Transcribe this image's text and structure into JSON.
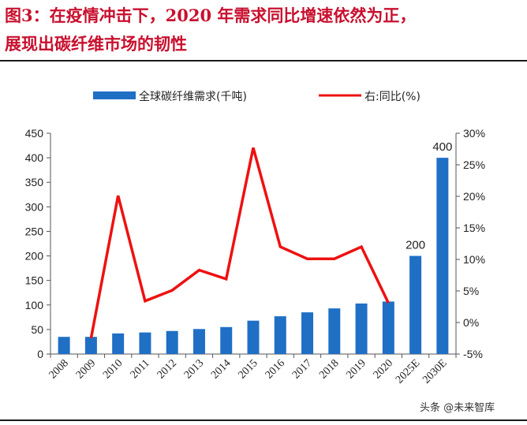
{
  "title": {
    "line1": "图3：在疫情冲击下，2020 年需求同比增速依然为正，",
    "line2": "展现出碳纤维市场的韧性"
  },
  "watermark": "头条 @未来智库",
  "colors": {
    "bar": "#1f6fc5",
    "line": "#ee1111",
    "title": "#c8102e"
  },
  "chart_data": {
    "type": "bar+line",
    "categories": [
      "2008",
      "2009",
      "2010",
      "2011",
      "2012",
      "2013",
      "2014",
      "2015",
      "2016",
      "2017",
      "2018",
      "2019",
      "2020",
      "2025E",
      "2030E"
    ],
    "series": [
      {
        "name": "全球碳纤维需求(千吨)",
        "type": "bar",
        "axis": "left",
        "values": [
          35,
          35,
          42,
          44,
          47,
          51,
          55,
          68,
          77,
          85,
          93,
          103,
          107,
          200,
          400
        ]
      },
      {
        "name": "右:同比(%)",
        "type": "line",
        "axis": "right",
        "values": [
          null,
          -2.5,
          20.1,
          3.4,
          5.1,
          8.3,
          6.9,
          27.7,
          12.0,
          10.1,
          10.1,
          12.0,
          3.1,
          null,
          null
        ]
      }
    ],
    "data_labels": [
      {
        "index": 13,
        "text": "200"
      },
      {
        "index": 14,
        "text": "400"
      }
    ],
    "left_axis": {
      "min": 0,
      "max": 450,
      "ticks": [
        "0",
        "50",
        "100",
        "150",
        "200",
        "250",
        "300",
        "350",
        "400",
        "450"
      ]
    },
    "right_axis": {
      "min": -5,
      "max": 30,
      "ticks": [
        "-5%",
        "0%",
        "5%",
        "10%",
        "15%",
        "20%",
        "25%",
        "30%"
      ]
    },
    "legend_position": "top",
    "grid": false
  }
}
